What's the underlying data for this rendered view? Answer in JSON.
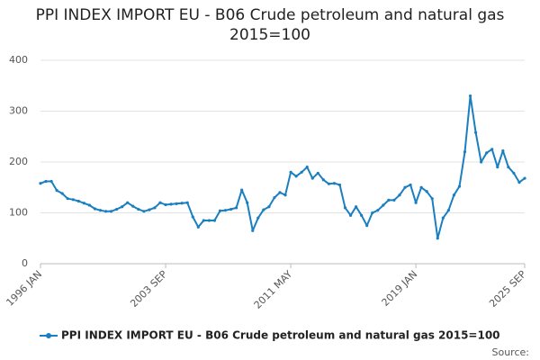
{
  "chart_data": {
    "type": "line",
    "title": "PPI INDEX IMPORT EU - B06 Crude petroleum and natural gas 2015=100",
    "source": "Source:",
    "categories": [
      "1996 JAN",
      null,
      null,
      null,
      null,
      null,
      null,
      null,
      null,
      null,
      null,
      null,
      null,
      null,
      null,
      null,
      null,
      null,
      null,
      null,
      null,
      null,
      null,
      "2003 SEP",
      null,
      null,
      null,
      null,
      null,
      null,
      null,
      null,
      null,
      null,
      null,
      null,
      null,
      null,
      null,
      null,
      null,
      null,
      null,
      null,
      null,
      null,
      "2011 MAY",
      null,
      null,
      null,
      null,
      null,
      null,
      null,
      null,
      null,
      null,
      null,
      null,
      null,
      null,
      null,
      null,
      null,
      null,
      null,
      null,
      null,
      null,
      "2019 JAN",
      null,
      null,
      null,
      null,
      null,
      null,
      null,
      null,
      null,
      null,
      null,
      null,
      null,
      null,
      null,
      null,
      null,
      null,
      null,
      "2025 SEP"
    ],
    "series": [
      {
        "name": "PPI INDEX IMPORT EU - B06 Crude petroleum and natural gas 2015=100",
        "color": "#1a7fc1",
        "values": [
          158,
          162,
          162,
          144,
          138,
          128,
          126,
          123,
          119,
          115,
          108,
          105,
          103,
          103,
          107,
          112,
          120,
          113,
          107,
          103,
          106,
          110,
          120,
          116,
          117,
          118,
          119,
          120,
          92,
          72,
          85,
          85,
          85,
          104,
          105,
          107,
          110,
          145,
          120,
          65,
          90,
          106,
          112,
          130,
          140,
          135,
          180,
          172,
          180,
          190,
          168,
          178,
          165,
          157,
          158,
          155,
          110,
          95,
          112,
          95,
          75,
          100,
          105,
          115,
          125,
          125,
          135,
          150,
          155,
          120,
          150,
          142,
          128,
          50,
          90,
          105,
          135,
          152,
          220,
          330,
          258,
          200,
          218,
          225,
          190,
          222,
          190,
          178,
          160,
          168
        ]
      }
    ],
    "ylim": [
      0,
      400
    ],
    "yticks": [
      0,
      100,
      200,
      300,
      400
    ],
    "grid": true
  }
}
